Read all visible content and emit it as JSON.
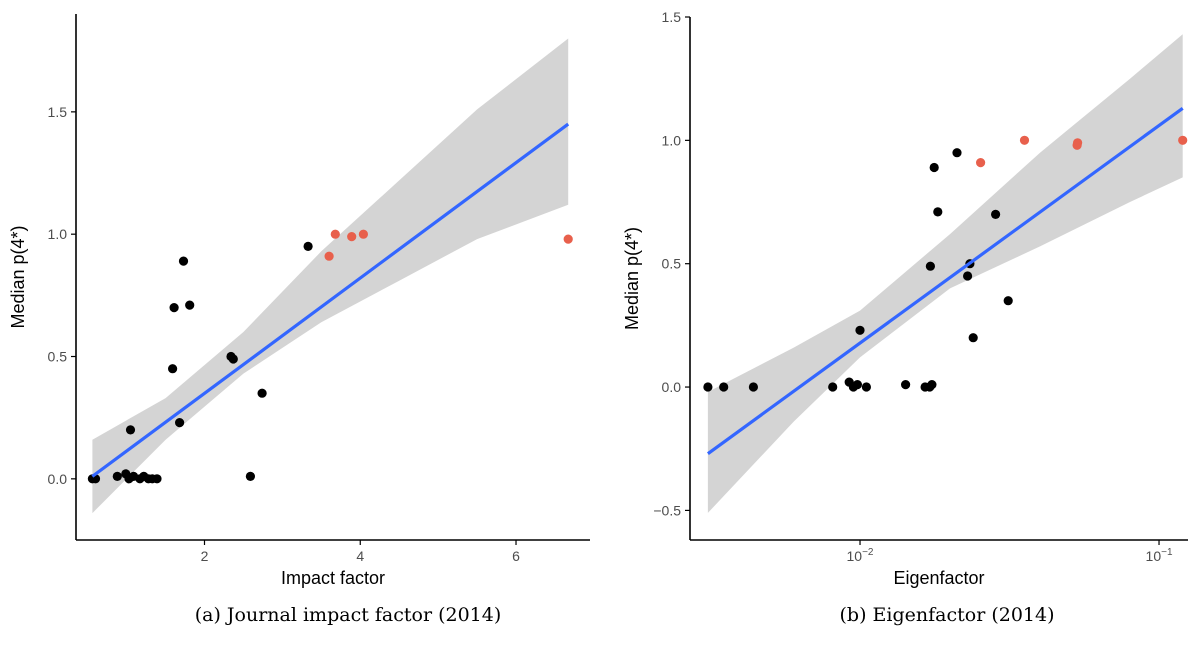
{
  "colors": {
    "point": "#000000",
    "highlight": "#e8604c",
    "fit": "#3366ff",
    "band": "#d4d4d4"
  },
  "chart_data": [
    {
      "type": "scatter",
      "panel": "a",
      "caption": "(a) Journal impact factor (2014)",
      "xlabel": "Impact factor",
      "ylabel": "Median p(4*)",
      "xscale": "linear",
      "xlim": [
        0.35,
        6.95
      ],
      "ylim": [
        -0.25,
        1.9
      ],
      "xticks": [
        {
          "v": 2,
          "label": "2"
        },
        {
          "v": 4,
          "label": "4"
        },
        {
          "v": 6,
          "label": "6"
        }
      ],
      "yticks": [
        {
          "v": 0,
          "label": "0.0"
        },
        {
          "v": 0.5,
          "label": "0.5"
        },
        {
          "v": 1.0,
          "label": "1.0"
        },
        {
          "v": 1.5,
          "label": "1.5"
        }
      ],
      "grid": false,
      "legend": "none",
      "points": [
        {
          "x": 0.56,
          "y": 0.0,
          "h": false
        },
        {
          "x": 0.6,
          "y": 0.0,
          "h": false
        },
        {
          "x": 0.88,
          "y": 0.01,
          "h": false
        },
        {
          "x": 0.99,
          "y": 0.02,
          "h": false
        },
        {
          "x": 1.03,
          "y": 0.0,
          "h": false
        },
        {
          "x": 1.05,
          "y": 0.2,
          "h": false
        },
        {
          "x": 1.09,
          "y": 0.01,
          "h": false
        },
        {
          "x": 1.17,
          "y": 0.0,
          "h": false
        },
        {
          "x": 1.22,
          "y": 0.01,
          "h": false
        },
        {
          "x": 1.28,
          "y": 0.0,
          "h": false
        },
        {
          "x": 1.33,
          "y": 0.0,
          "h": false
        },
        {
          "x": 1.39,
          "y": 0.0,
          "h": false
        },
        {
          "x": 1.59,
          "y": 0.45,
          "h": false
        },
        {
          "x": 1.61,
          "y": 0.7,
          "h": false
        },
        {
          "x": 1.68,
          "y": 0.23,
          "h": false
        },
        {
          "x": 1.73,
          "y": 0.89,
          "h": false
        },
        {
          "x": 1.81,
          "y": 0.71,
          "h": false
        },
        {
          "x": 2.34,
          "y": 0.5,
          "h": false
        },
        {
          "x": 2.37,
          "y": 0.49,
          "h": false
        },
        {
          "x": 2.59,
          "y": 0.01,
          "h": false
        },
        {
          "x": 2.74,
          "y": 0.35,
          "h": false
        },
        {
          "x": 3.33,
          "y": 0.95,
          "h": false
        },
        {
          "x": 3.6,
          "y": 0.91,
          "h": true
        },
        {
          "x": 3.68,
          "y": 1.0,
          "h": true
        },
        {
          "x": 3.89,
          "y": 0.99,
          "h": true
        },
        {
          "x": 4.04,
          "y": 1.0,
          "h": true
        },
        {
          "x": 6.67,
          "y": 0.98,
          "h": true
        }
      ],
      "fit": {
        "x0": 0.56,
        "y0": 0.01,
        "x1": 6.67,
        "y1": 1.45
      },
      "band": [
        {
          "x": 0.56,
          "lo": -0.14,
          "hi": 0.16
        },
        {
          "x": 1.5,
          "lo": 0.16,
          "hi": 0.33
        },
        {
          "x": 2.5,
          "lo": 0.43,
          "hi": 0.6
        },
        {
          "x": 3.5,
          "lo": 0.64,
          "hi": 0.93
        },
        {
          "x": 4.5,
          "lo": 0.81,
          "hi": 1.22
        },
        {
          "x": 5.5,
          "lo": 0.98,
          "hi": 1.51
        },
        {
          "x": 6.67,
          "lo": 1.12,
          "hi": 1.8
        }
      ]
    },
    {
      "type": "scatter",
      "panel": "b",
      "caption": "(b) Eigenfactor (2014)",
      "xlabel": "Eigenfactor",
      "ylabel": "Median p(4*)",
      "xscale": "log10",
      "xlim": [
        0.0027,
        0.125
      ],
      "ylim": [
        -0.62,
        1.5
      ],
      "xticks": [
        {
          "v": 0.01,
          "base": "10",
          "exp": "−2"
        },
        {
          "v": 0.1,
          "base": "10",
          "exp": "−1"
        }
      ],
      "yticks": [
        {
          "v": -0.5,
          "label": "−0.5"
        },
        {
          "v": 0,
          "label": "0.0"
        },
        {
          "v": 0.5,
          "label": "0.5"
        },
        {
          "v": 1.0,
          "label": "1.0"
        },
        {
          "v": 1.5,
          "label": "1.5"
        }
      ],
      "grid": false,
      "legend": "none",
      "points": [
        {
          "x": 0.0031,
          "y": 0.0,
          "h": false
        },
        {
          "x": 0.0035,
          "y": 0.0,
          "h": false
        },
        {
          "x": 0.0044,
          "y": 0.0,
          "h": false
        },
        {
          "x": 0.0081,
          "y": 0.0,
          "h": false
        },
        {
          "x": 0.0092,
          "y": 0.02,
          "h": false
        },
        {
          "x": 0.0095,
          "y": 0.0,
          "h": false
        },
        {
          "x": 0.0098,
          "y": 0.01,
          "h": false
        },
        {
          "x": 0.01,
          "y": 0.23,
          "h": false
        },
        {
          "x": 0.0105,
          "y": 0.0,
          "h": false
        },
        {
          "x": 0.0142,
          "y": 0.01,
          "h": false
        },
        {
          "x": 0.0165,
          "y": 0.0,
          "h": false
        },
        {
          "x": 0.0171,
          "y": 0.0,
          "h": false
        },
        {
          "x": 0.0174,
          "y": 0.01,
          "h": false
        },
        {
          "x": 0.0172,
          "y": 0.49,
          "h": false
        },
        {
          "x": 0.0177,
          "y": 0.89,
          "h": false
        },
        {
          "x": 0.0182,
          "y": 0.71,
          "h": false
        },
        {
          "x": 0.0211,
          "y": 0.95,
          "h": false
        },
        {
          "x": 0.0229,
          "y": 0.45,
          "h": false
        },
        {
          "x": 0.0233,
          "y": 0.5,
          "h": false
        },
        {
          "x": 0.0239,
          "y": 0.2,
          "h": false
        },
        {
          "x": 0.0253,
          "y": 0.91,
          "h": true
        },
        {
          "x": 0.0284,
          "y": 0.7,
          "h": false
        },
        {
          "x": 0.0313,
          "y": 0.35,
          "h": false
        },
        {
          "x": 0.0355,
          "y": 1.0,
          "h": true
        },
        {
          "x": 0.0532,
          "y": 0.98,
          "h": true
        },
        {
          "x": 0.0534,
          "y": 0.99,
          "h": true
        },
        {
          "x": 0.12,
          "y": 1.0,
          "h": true
        }
      ],
      "fit": {
        "x0": 0.0031,
        "y0": -0.27,
        "x1": 0.12,
        "y1": 1.13
      },
      "band": [
        {
          "x": 0.0031,
          "lo": -0.51,
          "hi": -0.02
        },
        {
          "x": 0.006,
          "lo": -0.14,
          "hi": 0.16
        },
        {
          "x": 0.01,
          "lo": 0.12,
          "hi": 0.31
        },
        {
          "x": 0.02,
          "lo": 0.4,
          "hi": 0.62
        },
        {
          "x": 0.04,
          "lo": 0.57,
          "hi": 0.95
        },
        {
          "x": 0.08,
          "lo": 0.75,
          "hi": 1.25
        },
        {
          "x": 0.12,
          "lo": 0.85,
          "hi": 1.43
        }
      ]
    }
  ]
}
